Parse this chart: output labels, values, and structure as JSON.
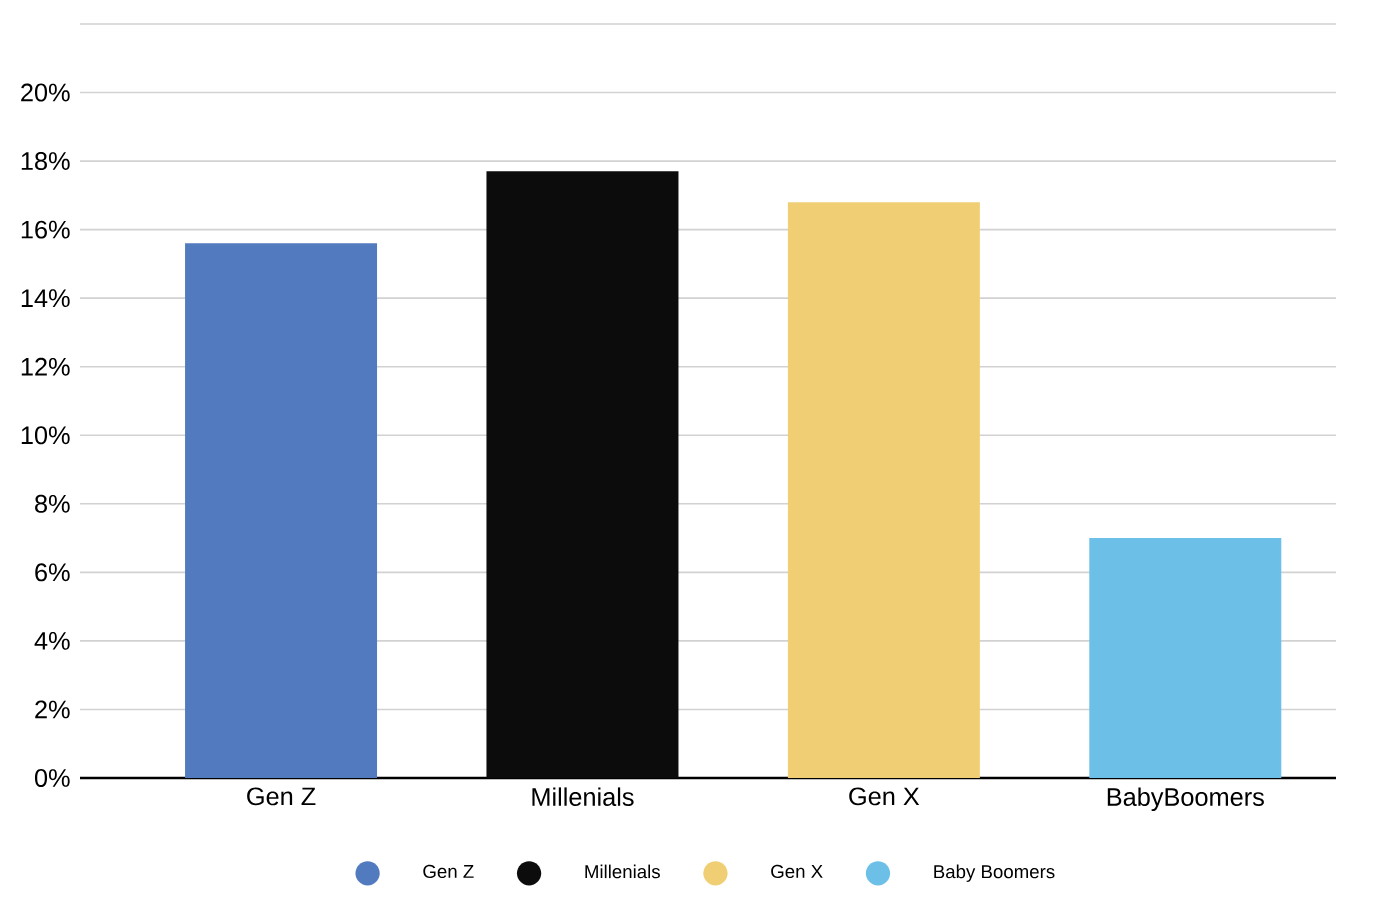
{
  "chart_data": {
    "type": "bar",
    "categories": [
      "Gen Z",
      "Millenials",
      "Gen X",
      "BabyBoomers"
    ],
    "series": [
      {
        "name": "Gen Z",
        "color": "#527bbf",
        "values": [
          15.6,
          null,
          null,
          null
        ]
      },
      {
        "name": "Millenials",
        "color": "#0c0c0c",
        "values": [
          null,
          17.7,
          null,
          null
        ]
      },
      {
        "name": "Gen X",
        "color": "#f0cf74",
        "values": [
          null,
          null,
          16.8,
          null
        ]
      },
      {
        "name": "Baby Boomers",
        "color": "#6cc0e8",
        "values": [
          null,
          null,
          null,
          7.0
        ]
      }
    ],
    "ylim": [
      0,
      22
    ],
    "yticks": [
      {
        "value": 0,
        "label": "0%"
      },
      {
        "value": 2,
        "label": "2%"
      },
      {
        "value": 4,
        "label": "4%"
      },
      {
        "value": 6,
        "label": "6%"
      },
      {
        "value": 8,
        "label": "8%"
      },
      {
        "value": 10,
        "label": "10%"
      },
      {
        "value": 12,
        "label": "12%"
      },
      {
        "value": 14,
        "label": "14%"
      },
      {
        "value": 16,
        "label": "16%"
      },
      {
        "value": 18,
        "label": "18%"
      },
      {
        "value": 20,
        "label": "20%"
      },
      {
        "value": 22,
        "label": null
      }
    ],
    "grid": "y",
    "legend": "bottom"
  }
}
